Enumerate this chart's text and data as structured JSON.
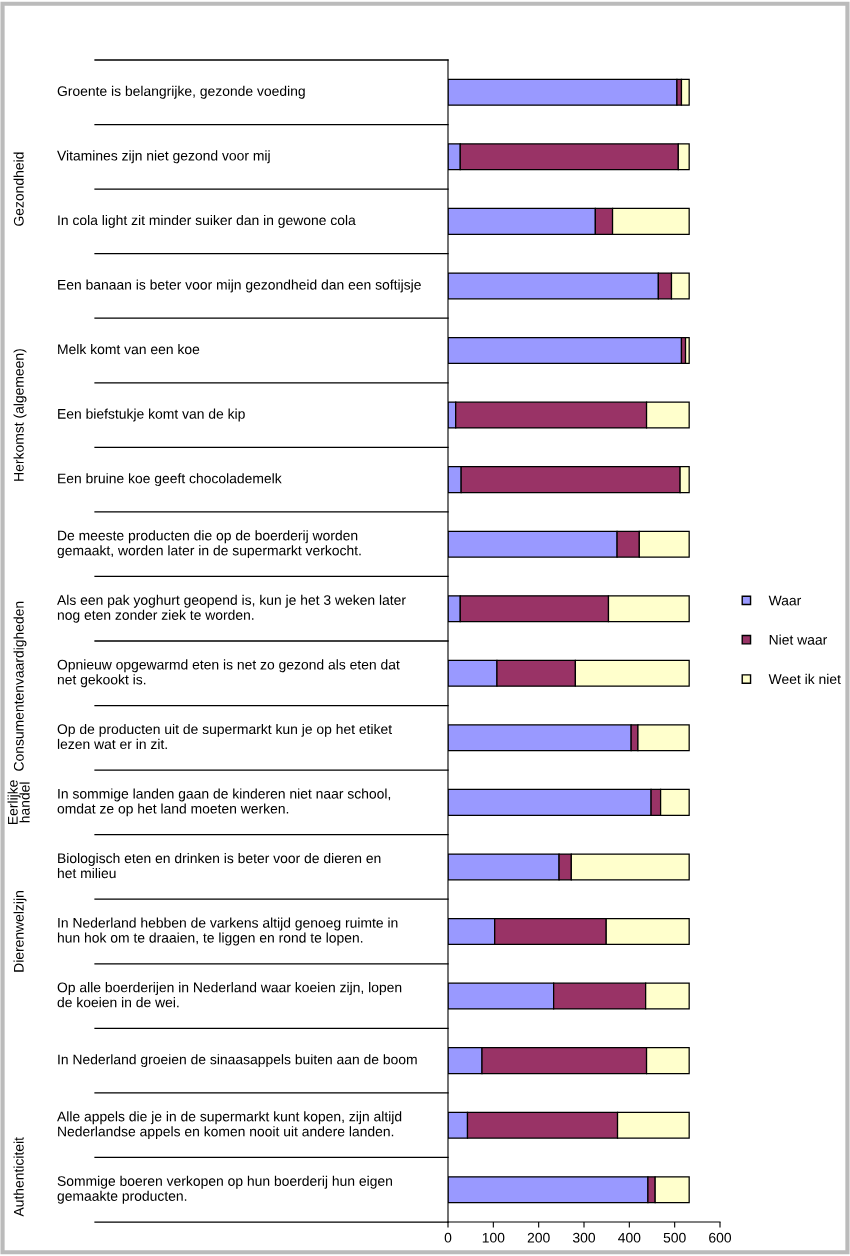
{
  "chart_data": {
    "type": "bar",
    "orientation": "horizontal",
    "stacked": true,
    "categories": [
      "Groente is belangrijke, gezonde voeding",
      "Vitamines zijn niet gezond voor mij",
      "In cola light zit minder suiker dan in gewone cola",
      "Een banaan is beter voor mijn gezondheid dan een softijsje",
      "Melk komt van een koe",
      "Een biefstukje komt van de kip",
      "Een bruine koe geeft chocolademelk",
      "De meeste producten die op de boerderij worden\ngemaakt, worden later in de supermarkt verkocht.",
      "Als een pak yoghurt geopend is, kun je het 3 weken later\nnog eten zonder ziek te worden.",
      "Opnieuw opgewarmd eten is net zo gezond als eten dat\nnet gekookt is.",
      "Op de producten uit de supermarkt kun je op het etiket\nlezen wat er in zit.",
      "In sommige landen gaan de kinderen niet naar school,\nomdat ze op het land moeten werken.",
      "Biologisch eten en drinken is beter voor de dieren en\nhet milieu",
      "In Nederland hebben de varkens altijd genoeg ruimte in\nhun hok om te draaien, te liggen en rond te lopen.",
      "Op alle boerderijen in Nederland waar koeien zijn, lopen\nde koeien in de wei.",
      "In Nederland groeien de sinaasappels buiten aan de boom",
      "Alle appels die je in de supermarkt kunt kopen, zijn altijd\nNederlandse appels en komen nooit uit andere landen.",
      "Sommige boeren verkopen op hun boerderij hun eigen\ngemaakte producten."
    ],
    "series": [
      {
        "name": "Waar",
        "color": "#9999ff",
        "values": [
          505,
          27,
          325,
          464,
          515,
          17,
          29,
          373,
          27,
          108,
          404,
          448,
          245,
          103,
          233,
          75,
          43,
          441
        ]
      },
      {
        "name": "Niet waar",
        "color": "#993366",
        "values": [
          10,
          481,
          38,
          29,
          9,
          421,
          483,
          49,
          327,
          173,
          15,
          21,
          27,
          246,
          203,
          363,
          331,
          16
        ]
      },
      {
        "name": "Weet ik niet",
        "color": "#ffffcc",
        "values": [
          17,
          24,
          169,
          39,
          8,
          94,
          20,
          110,
          178,
          251,
          113,
          63,
          260,
          183,
          96,
          94,
          158,
          75
        ]
      }
    ],
    "xlim": [
      0,
      600
    ],
    "xticks": [
      0,
      100,
      200,
      300,
      400,
      500,
      600
    ],
    "annotations": [
      "Gezondheid",
      "Herkomst (algemeen)",
      "Consumentenvaardigheden",
      "Eerlijke\nhandel",
      "Dierenwelzijn",
      "Authenticiteit"
    ],
    "legend": "right",
    "grid": false
  }
}
